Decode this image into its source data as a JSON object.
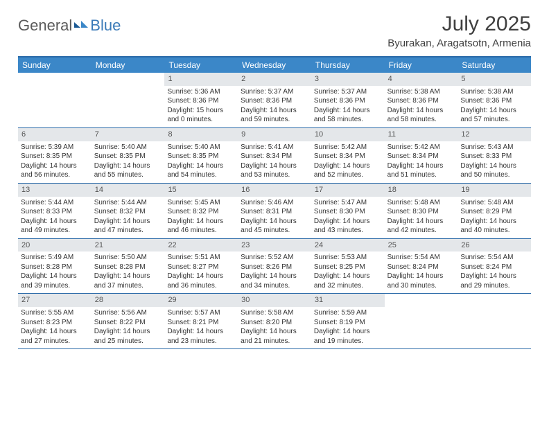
{
  "brand": {
    "general": "General",
    "blue": "Blue"
  },
  "title": "July 2025",
  "location": "Byurakan, Aragatsotn, Armenia",
  "colors": {
    "header_bar": "#3b87c8",
    "border": "#2a6aa8",
    "daynum_bg": "#e4e7ea",
    "text": "#333333",
    "brand_gray": "#5a5a5a",
    "brand_blue": "#3a7ab8"
  },
  "weekdays": [
    "Sunday",
    "Monday",
    "Tuesday",
    "Wednesday",
    "Thursday",
    "Friday",
    "Saturday"
  ],
  "weeks": [
    [
      {
        "n": "",
        "sr": "",
        "ss": "",
        "dl": ""
      },
      {
        "n": "",
        "sr": "",
        "ss": "",
        "dl": ""
      },
      {
        "n": "1",
        "sr": "Sunrise: 5:36 AM",
        "ss": "Sunset: 8:36 PM",
        "dl": "Daylight: 15 hours and 0 minutes."
      },
      {
        "n": "2",
        "sr": "Sunrise: 5:37 AM",
        "ss": "Sunset: 8:36 PM",
        "dl": "Daylight: 14 hours and 59 minutes."
      },
      {
        "n": "3",
        "sr": "Sunrise: 5:37 AM",
        "ss": "Sunset: 8:36 PM",
        "dl": "Daylight: 14 hours and 58 minutes."
      },
      {
        "n": "4",
        "sr": "Sunrise: 5:38 AM",
        "ss": "Sunset: 8:36 PM",
        "dl": "Daylight: 14 hours and 58 minutes."
      },
      {
        "n": "5",
        "sr": "Sunrise: 5:38 AM",
        "ss": "Sunset: 8:36 PM",
        "dl": "Daylight: 14 hours and 57 minutes."
      }
    ],
    [
      {
        "n": "6",
        "sr": "Sunrise: 5:39 AM",
        "ss": "Sunset: 8:35 PM",
        "dl": "Daylight: 14 hours and 56 minutes."
      },
      {
        "n": "7",
        "sr": "Sunrise: 5:40 AM",
        "ss": "Sunset: 8:35 PM",
        "dl": "Daylight: 14 hours and 55 minutes."
      },
      {
        "n": "8",
        "sr": "Sunrise: 5:40 AM",
        "ss": "Sunset: 8:35 PM",
        "dl": "Daylight: 14 hours and 54 minutes."
      },
      {
        "n": "9",
        "sr": "Sunrise: 5:41 AM",
        "ss": "Sunset: 8:34 PM",
        "dl": "Daylight: 14 hours and 53 minutes."
      },
      {
        "n": "10",
        "sr": "Sunrise: 5:42 AM",
        "ss": "Sunset: 8:34 PM",
        "dl": "Daylight: 14 hours and 52 minutes."
      },
      {
        "n": "11",
        "sr": "Sunrise: 5:42 AM",
        "ss": "Sunset: 8:34 PM",
        "dl": "Daylight: 14 hours and 51 minutes."
      },
      {
        "n": "12",
        "sr": "Sunrise: 5:43 AM",
        "ss": "Sunset: 8:33 PM",
        "dl": "Daylight: 14 hours and 50 minutes."
      }
    ],
    [
      {
        "n": "13",
        "sr": "Sunrise: 5:44 AM",
        "ss": "Sunset: 8:33 PM",
        "dl": "Daylight: 14 hours and 49 minutes."
      },
      {
        "n": "14",
        "sr": "Sunrise: 5:44 AM",
        "ss": "Sunset: 8:32 PM",
        "dl": "Daylight: 14 hours and 47 minutes."
      },
      {
        "n": "15",
        "sr": "Sunrise: 5:45 AM",
        "ss": "Sunset: 8:32 PM",
        "dl": "Daylight: 14 hours and 46 minutes."
      },
      {
        "n": "16",
        "sr": "Sunrise: 5:46 AM",
        "ss": "Sunset: 8:31 PM",
        "dl": "Daylight: 14 hours and 45 minutes."
      },
      {
        "n": "17",
        "sr": "Sunrise: 5:47 AM",
        "ss": "Sunset: 8:30 PM",
        "dl": "Daylight: 14 hours and 43 minutes."
      },
      {
        "n": "18",
        "sr": "Sunrise: 5:48 AM",
        "ss": "Sunset: 8:30 PM",
        "dl": "Daylight: 14 hours and 42 minutes."
      },
      {
        "n": "19",
        "sr": "Sunrise: 5:48 AM",
        "ss": "Sunset: 8:29 PM",
        "dl": "Daylight: 14 hours and 40 minutes."
      }
    ],
    [
      {
        "n": "20",
        "sr": "Sunrise: 5:49 AM",
        "ss": "Sunset: 8:28 PM",
        "dl": "Daylight: 14 hours and 39 minutes."
      },
      {
        "n": "21",
        "sr": "Sunrise: 5:50 AM",
        "ss": "Sunset: 8:28 PM",
        "dl": "Daylight: 14 hours and 37 minutes."
      },
      {
        "n": "22",
        "sr": "Sunrise: 5:51 AM",
        "ss": "Sunset: 8:27 PM",
        "dl": "Daylight: 14 hours and 36 minutes."
      },
      {
        "n": "23",
        "sr": "Sunrise: 5:52 AM",
        "ss": "Sunset: 8:26 PM",
        "dl": "Daylight: 14 hours and 34 minutes."
      },
      {
        "n": "24",
        "sr": "Sunrise: 5:53 AM",
        "ss": "Sunset: 8:25 PM",
        "dl": "Daylight: 14 hours and 32 minutes."
      },
      {
        "n": "25",
        "sr": "Sunrise: 5:54 AM",
        "ss": "Sunset: 8:24 PM",
        "dl": "Daylight: 14 hours and 30 minutes."
      },
      {
        "n": "26",
        "sr": "Sunrise: 5:54 AM",
        "ss": "Sunset: 8:24 PM",
        "dl": "Daylight: 14 hours and 29 minutes."
      }
    ],
    [
      {
        "n": "27",
        "sr": "Sunrise: 5:55 AM",
        "ss": "Sunset: 8:23 PM",
        "dl": "Daylight: 14 hours and 27 minutes."
      },
      {
        "n": "28",
        "sr": "Sunrise: 5:56 AM",
        "ss": "Sunset: 8:22 PM",
        "dl": "Daylight: 14 hours and 25 minutes."
      },
      {
        "n": "29",
        "sr": "Sunrise: 5:57 AM",
        "ss": "Sunset: 8:21 PM",
        "dl": "Daylight: 14 hours and 23 minutes."
      },
      {
        "n": "30",
        "sr": "Sunrise: 5:58 AM",
        "ss": "Sunset: 8:20 PM",
        "dl": "Daylight: 14 hours and 21 minutes."
      },
      {
        "n": "31",
        "sr": "Sunrise: 5:59 AM",
        "ss": "Sunset: 8:19 PM",
        "dl": "Daylight: 14 hours and 19 minutes."
      },
      {
        "n": "",
        "sr": "",
        "ss": "",
        "dl": ""
      },
      {
        "n": "",
        "sr": "",
        "ss": "",
        "dl": ""
      }
    ]
  ]
}
